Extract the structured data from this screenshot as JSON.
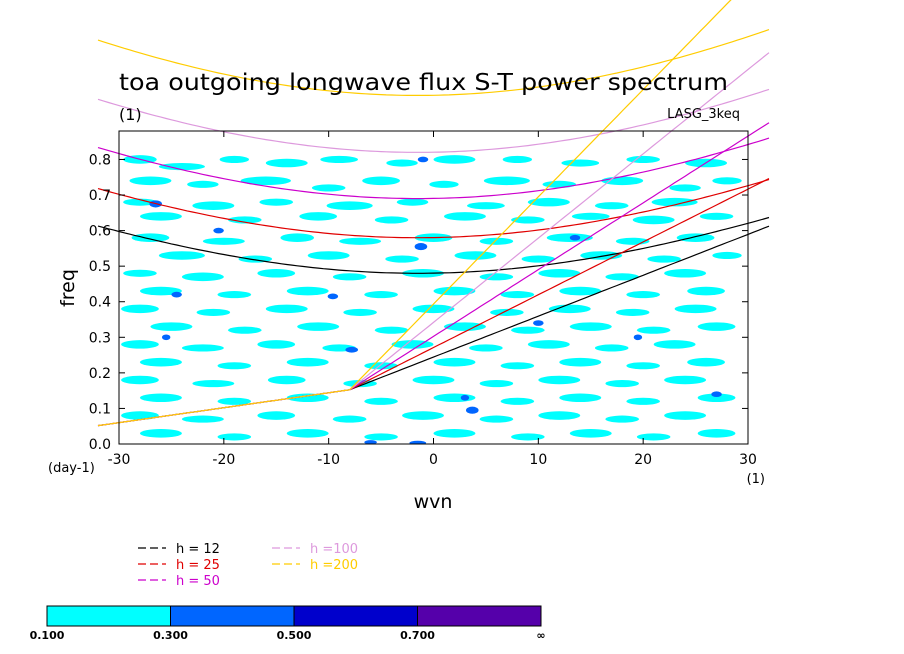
{
  "chart_data": {
    "type": "contour",
    "title": "toa outgoing longwave flux S-T power spectrum",
    "title_units": "(1)",
    "model_label": "LASG_3keq",
    "xlabel": "wvn",
    "x_units": "(1)",
    "ylabel": "freq",
    "y_units": "(day-1)",
    "xlim": [
      -30,
      30
    ],
    "ylim": [
      0,
      0.88
    ],
    "x_ticks": [
      "-30",
      "-20",
      "-10",
      "0",
      "10",
      "20",
      "30"
    ],
    "y_ticks": [
      "0.0",
      "0.1",
      "0.2",
      "0.3",
      "0.4",
      "0.5",
      "0.6",
      "0.7",
      "0.8"
    ],
    "dispersion_curves": [
      {
        "name": "h = 12",
        "color": "#000000",
        "min_freq": 0.48
      },
      {
        "name": "h = 25",
        "color": "#e00000",
        "min_freq": 0.58
      },
      {
        "name": "h = 50",
        "color": "#cc00cc",
        "min_freq": 0.69
      },
      {
        "name": "h =100",
        "color": "#dd99dd",
        "min_freq": 0.82
      },
      {
        "name": "h =200",
        "color": "#ffcc00",
        "min_freq": 0.98
      }
    ],
    "colorbar": {
      "levels": [
        "0.100",
        "0.300",
        "0.500",
        "0.700",
        "∞"
      ],
      "colors": [
        "#00ffff",
        "#0066ff",
        "#0000cc",
        "#5500aa"
      ]
    },
    "blobs": [
      [
        -28,
        0.8,
        1.6,
        0.012,
        0
      ],
      [
        -24,
        0.78,
        2.2,
        0.01,
        0
      ],
      [
        -19,
        0.8,
        1.4,
        0.01,
        0
      ],
      [
        -14,
        0.79,
        2.0,
        0.012,
        0
      ],
      [
        -9,
        0.8,
        1.8,
        0.01,
        0
      ],
      [
        -3,
        0.79,
        1.5,
        0.01,
        0
      ],
      [
        2,
        0.8,
        2.0,
        0.012,
        0
      ],
      [
        8,
        0.8,
        1.4,
        0.01,
        0
      ],
      [
        14,
        0.79,
        1.8,
        0.01,
        0
      ],
      [
        20,
        0.8,
        1.6,
        0.01,
        0
      ],
      [
        26,
        0.79,
        2.0,
        0.012,
        0
      ],
      [
        -27,
        0.74,
        2.0,
        0.012,
        0
      ],
      [
        -22,
        0.73,
        1.5,
        0.01,
        0
      ],
      [
        -16,
        0.74,
        2.4,
        0.012,
        0
      ],
      [
        -10,
        0.72,
        1.6,
        0.01,
        0
      ],
      [
        -5,
        0.74,
        1.8,
        0.012,
        0
      ],
      [
        1,
        0.73,
        1.4,
        0.01,
        0
      ],
      [
        7,
        0.74,
        2.2,
        0.012,
        0
      ],
      [
        12,
        0.73,
        1.6,
        0.01,
        0
      ],
      [
        18,
        0.74,
        2.0,
        0.012,
        0
      ],
      [
        24,
        0.72,
        1.5,
        0.01,
        0
      ],
      [
        28,
        0.74,
        1.4,
        0.01,
        0
      ],
      [
        -28,
        0.68,
        1.6,
        0.01,
        0
      ],
      [
        -21,
        0.67,
        2.0,
        0.012,
        0
      ],
      [
        -15,
        0.68,
        1.6,
        0.01,
        0
      ],
      [
        -8,
        0.67,
        2.2,
        0.012,
        0
      ],
      [
        -2,
        0.68,
        1.5,
        0.01,
        0
      ],
      [
        5,
        0.67,
        1.8,
        0.01,
        0
      ],
      [
        11,
        0.68,
        2.0,
        0.012,
        0
      ],
      [
        17,
        0.67,
        1.6,
        0.01,
        0
      ],
      [
        23,
        0.68,
        2.2,
        0.012,
        0
      ],
      [
        -26,
        0.64,
        2.0,
        0.012,
        0
      ],
      [
        -18,
        0.63,
        1.6,
        0.01,
        0
      ],
      [
        -11,
        0.64,
        1.8,
        0.012,
        0
      ],
      [
        -4,
        0.63,
        1.6,
        0.01,
        0
      ],
      [
        3,
        0.64,
        2.0,
        0.012,
        0
      ],
      [
        9,
        0.63,
        1.6,
        0.01,
        0
      ],
      [
        15,
        0.64,
        1.8,
        0.01,
        0
      ],
      [
        21,
        0.63,
        2.0,
        0.012,
        0
      ],
      [
        27,
        0.64,
        1.6,
        0.01,
        0
      ],
      [
        -27,
        0.58,
        1.8,
        0.012,
        0
      ],
      [
        -20,
        0.57,
        2.0,
        0.01,
        0
      ],
      [
        -13,
        0.58,
        1.6,
        0.012,
        0
      ],
      [
        -7,
        0.57,
        2.0,
        0.01,
        0
      ],
      [
        0,
        0.58,
        1.8,
        0.012,
        0
      ],
      [
        6,
        0.57,
        1.6,
        0.01,
        0
      ],
      [
        13,
        0.58,
        2.2,
        0.012,
        0
      ],
      [
        19,
        0.57,
        1.6,
        0.01,
        0
      ],
      [
        25,
        0.58,
        1.8,
        0.012,
        0
      ],
      [
        -24,
        0.53,
        2.2,
        0.012,
        0
      ],
      [
        -17,
        0.52,
        1.6,
        0.01,
        0
      ],
      [
        -10,
        0.53,
        2.0,
        0.012,
        0
      ],
      [
        -3,
        0.52,
        1.6,
        0.01,
        0
      ],
      [
        4,
        0.53,
        2.0,
        0.012,
        0
      ],
      [
        10,
        0.52,
        1.6,
        0.01,
        0
      ],
      [
        16,
        0.53,
        2.0,
        0.012,
        0
      ],
      [
        22,
        0.52,
        1.6,
        0.01,
        0
      ],
      [
        28,
        0.53,
        1.4,
        0.01,
        0
      ],
      [
        -28,
        0.48,
        1.6,
        0.01,
        0
      ],
      [
        -22,
        0.47,
        2.0,
        0.012,
        0
      ],
      [
        -15,
        0.48,
        1.8,
        0.012,
        0
      ],
      [
        -8,
        0.47,
        1.6,
        0.01,
        0
      ],
      [
        -1,
        0.48,
        2.0,
        0.012,
        0
      ],
      [
        6,
        0.47,
        1.6,
        0.01,
        0
      ],
      [
        12,
        0.48,
        2.0,
        0.012,
        0
      ],
      [
        18,
        0.47,
        1.6,
        0.01,
        0
      ],
      [
        24,
        0.48,
        2.0,
        0.012,
        0
      ],
      [
        -26,
        0.43,
        2.0,
        0.012,
        0
      ],
      [
        -19,
        0.42,
        1.6,
        0.01,
        0
      ],
      [
        -12,
        0.43,
        2.0,
        0.012,
        0
      ],
      [
        -5,
        0.42,
        1.6,
        0.01,
        0
      ],
      [
        2,
        0.43,
        2.0,
        0.012,
        0
      ],
      [
        8,
        0.42,
        1.6,
        0.01,
        0
      ],
      [
        14,
        0.43,
        2.0,
        0.012,
        0
      ],
      [
        20,
        0.42,
        1.6,
        0.01,
        0
      ],
      [
        26,
        0.43,
        1.8,
        0.012,
        0
      ],
      [
        -28,
        0.38,
        1.8,
        0.012,
        0
      ],
      [
        -21,
        0.37,
        1.6,
        0.01,
        0
      ],
      [
        -14,
        0.38,
        2.0,
        0.012,
        0
      ],
      [
        -7,
        0.37,
        1.6,
        0.01,
        0
      ],
      [
        0,
        0.38,
        2.0,
        0.012,
        0
      ],
      [
        7,
        0.37,
        1.6,
        0.01,
        0
      ],
      [
        13,
        0.38,
        2.0,
        0.012,
        0
      ],
      [
        19,
        0.37,
        1.6,
        0.01,
        0
      ],
      [
        25,
        0.38,
        2.0,
        0.012,
        0
      ],
      [
        -25,
        0.33,
        2.0,
        0.012,
        0
      ],
      [
        -18,
        0.32,
        1.6,
        0.01,
        0
      ],
      [
        -11,
        0.33,
        2.0,
        0.012,
        0
      ],
      [
        -4,
        0.32,
        1.6,
        0.01,
        0
      ],
      [
        3,
        0.33,
        2.0,
        0.012,
        0
      ],
      [
        9,
        0.32,
        1.6,
        0.01,
        0
      ],
      [
        15,
        0.33,
        2.0,
        0.012,
        0
      ],
      [
        21,
        0.32,
        1.6,
        0.01,
        0
      ],
      [
        27,
        0.33,
        1.8,
        0.012,
        0
      ],
      [
        -28,
        0.28,
        1.8,
        0.012,
        0
      ],
      [
        -22,
        0.27,
        2.0,
        0.01,
        0
      ],
      [
        -15,
        0.28,
        1.8,
        0.012,
        0
      ],
      [
        -9,
        0.27,
        1.6,
        0.01,
        0
      ],
      [
        -2,
        0.28,
        2.0,
        0.012,
        0
      ],
      [
        5,
        0.27,
        1.6,
        0.01,
        0
      ],
      [
        11,
        0.28,
        2.0,
        0.012,
        0
      ],
      [
        17,
        0.27,
        1.6,
        0.01,
        0
      ],
      [
        23,
        0.28,
        2.0,
        0.012,
        0
      ],
      [
        -26,
        0.23,
        2.0,
        0.012,
        0
      ],
      [
        -19,
        0.22,
        1.6,
        0.01,
        0
      ],
      [
        -12,
        0.23,
        2.0,
        0.012,
        0
      ],
      [
        -5,
        0.22,
        1.6,
        0.01,
        0
      ],
      [
        2,
        0.23,
        2.0,
        0.012,
        0
      ],
      [
        8,
        0.22,
        1.6,
        0.01,
        0
      ],
      [
        14,
        0.23,
        2.0,
        0.012,
        0
      ],
      [
        20,
        0.22,
        1.6,
        0.01,
        0
      ],
      [
        26,
        0.23,
        1.8,
        0.012,
        0
      ],
      [
        -28,
        0.18,
        1.8,
        0.012,
        0
      ],
      [
        -21,
        0.17,
        2.0,
        0.01,
        0
      ],
      [
        -14,
        0.18,
        1.8,
        0.012,
        0
      ],
      [
        -7,
        0.17,
        1.6,
        0.01,
        0
      ],
      [
        0,
        0.18,
        2.0,
        0.012,
        0
      ],
      [
        6,
        0.17,
        1.6,
        0.01,
        0
      ],
      [
        12,
        0.18,
        2.0,
        0.012,
        0
      ],
      [
        18,
        0.17,
        1.6,
        0.01,
        0
      ],
      [
        24,
        0.18,
        2.0,
        0.012,
        0
      ],
      [
        -26,
        0.13,
        2.0,
        0.012,
        0
      ],
      [
        -19,
        0.12,
        1.6,
        0.01,
        0
      ],
      [
        -12,
        0.13,
        2.0,
        0.012,
        0
      ],
      [
        -5,
        0.12,
        1.6,
        0.01,
        0
      ],
      [
        2,
        0.13,
        2.0,
        0.012,
        0
      ],
      [
        8,
        0.12,
        1.6,
        0.01,
        0
      ],
      [
        14,
        0.13,
        2.0,
        0.012,
        0
      ],
      [
        20,
        0.12,
        1.6,
        0.01,
        0
      ],
      [
        27,
        0.13,
        1.8,
        0.012,
        0
      ],
      [
        -28,
        0.08,
        1.8,
        0.012,
        0
      ],
      [
        -22,
        0.07,
        2.0,
        0.01,
        0
      ],
      [
        -15,
        0.08,
        1.8,
        0.012,
        0
      ],
      [
        -8,
        0.07,
        1.6,
        0.01,
        0
      ],
      [
        -1,
        0.08,
        2.0,
        0.012,
        0
      ],
      [
        6,
        0.07,
        1.6,
        0.01,
        0
      ],
      [
        12,
        0.08,
        2.0,
        0.012,
        0
      ],
      [
        18,
        0.07,
        1.6,
        0.01,
        0
      ],
      [
        24,
        0.08,
        2.0,
        0.012,
        0
      ],
      [
        -26,
        0.03,
        2.0,
        0.012,
        0
      ],
      [
        -19,
        0.02,
        1.6,
        0.01,
        0
      ],
      [
        -12,
        0.03,
        2.0,
        0.012,
        0
      ],
      [
        -5,
        0.02,
        1.6,
        0.01,
        0
      ],
      [
        2,
        0.03,
        2.0,
        0.012,
        0
      ],
      [
        9,
        0.02,
        1.6,
        0.01,
        0
      ],
      [
        15,
        0.03,
        2.0,
        0.012,
        0
      ],
      [
        21,
        0.02,
        1.6,
        0.01,
        0
      ],
      [
        27,
        0.03,
        1.8,
        0.012,
        0
      ],
      [
        -26.5,
        0.675,
        0.6,
        0.01,
        1
      ],
      [
        -1.2,
        0.555,
        0.6,
        0.01,
        1
      ],
      [
        -1.0,
        0.8,
        0.5,
        0.008,
        1
      ],
      [
        -20.5,
        0.6,
        0.5,
        0.008,
        1
      ],
      [
        -24.5,
        0.42,
        0.5,
        0.008,
        1
      ],
      [
        -7.8,
        0.265,
        0.6,
        0.008,
        1
      ],
      [
        -9.6,
        0.415,
        0.5,
        0.008,
        1
      ],
      [
        3.7,
        0.095,
        0.6,
        0.01,
        1
      ],
      [
        3.0,
        0.13,
        0.4,
        0.008,
        1
      ],
      [
        -1.5,
        0.003,
        0.8,
        0.006,
        1
      ],
      [
        13.5,
        0.58,
        0.5,
        0.008,
        1
      ],
      [
        10,
        0.34,
        0.5,
        0.008,
        1
      ],
      [
        27,
        0.14,
        0.5,
        0.008,
        1
      ],
      [
        -6,
        0.005,
        0.6,
        0.006,
        1
      ],
      [
        -25.5,
        0.3,
        0.4,
        0.008,
        1
      ],
      [
        19.5,
        0.3,
        0.4,
        0.008,
        1
      ]
    ]
  }
}
